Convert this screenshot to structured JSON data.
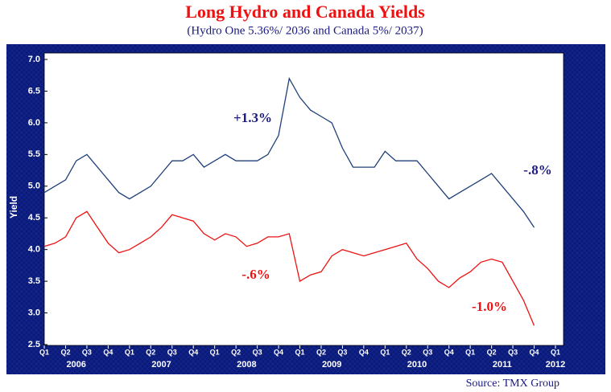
{
  "chart_data": {
    "type": "line",
    "title": "Long Hydro and Canada Yields",
    "subtitle": "(Hydro One 5.36%/ 2036 and Canada 5%/ 2037)",
    "y_label": "Yield",
    "source": "Source: TMX Group",
    "categories": [
      "Q1",
      null,
      "Q2",
      null,
      "Q3",
      null,
      "Q4",
      null,
      "Q1",
      null,
      "Q2",
      null,
      "Q3",
      null,
      "Q4",
      null,
      "Q1",
      null,
      "Q2",
      null,
      "Q3",
      null,
      "Q4",
      null,
      "Q1",
      null,
      "Q2",
      null,
      "Q3",
      null,
      "Q4",
      null,
      "Q1",
      null,
      "Q2",
      null,
      "Q3",
      null,
      "Q4",
      null,
      "Q1",
      null,
      "Q2",
      null,
      "Q3",
      null,
      "Q4",
      null,
      "Q1"
    ],
    "years": [
      "2006",
      "2007",
      "2008",
      "2009",
      "2010",
      "2011",
      "2012"
    ],
    "series": [
      {
        "name": "Hydro One 5.36%/ 2036",
        "color": "#1f3f7a",
        "values": [
          4.9,
          5.0,
          5.1,
          5.4,
          5.5,
          5.3,
          5.1,
          4.9,
          4.8,
          4.9,
          5.0,
          5.2,
          5.4,
          5.4,
          5.5,
          5.3,
          5.4,
          5.5,
          5.4,
          5.4,
          5.4,
          5.5,
          5.8,
          6.7,
          6.4,
          6.2,
          6.1,
          6.0,
          5.6,
          5.3,
          5.3,
          5.3,
          5.55,
          5.4,
          5.4,
          5.4,
          5.2,
          5.0,
          4.8,
          4.9,
          5.0,
          5.1,
          5.2,
          5.0,
          4.8,
          4.6,
          4.35,
          null,
          null
        ]
      },
      {
        "name": "Canada 5%/ 2037",
        "color": "#ee1111",
        "values": [
          4.05,
          4.1,
          4.2,
          4.5,
          4.6,
          4.35,
          4.1,
          3.95,
          4.0,
          4.1,
          4.2,
          4.35,
          4.55,
          4.5,
          4.45,
          4.25,
          4.15,
          4.25,
          4.2,
          4.05,
          4.1,
          4.2,
          4.2,
          4.25,
          3.5,
          3.6,
          3.65,
          3.9,
          4.0,
          3.95,
          3.9,
          3.95,
          4.0,
          4.05,
          4.1,
          3.85,
          3.7,
          3.5,
          3.4,
          3.55,
          3.65,
          3.8,
          3.85,
          3.8,
          3.5,
          3.2,
          2.8,
          null,
          null
        ]
      }
    ],
    "annotations": [
      {
        "text": "+1.3%",
        "color": "#1a1a80"
      },
      {
        "text": "-.8%",
        "color": "#1a1a80"
      },
      {
        "text": "-.6%",
        "color": "#ee1111"
      },
      {
        "text": "-1.0%",
        "color": "#ee1111"
      }
    ],
    "ylim": [
      2.5,
      7.0
    ],
    "yticks": [
      {
        "value": 2.5,
        "label": "2.5"
      },
      {
        "value": 3,
        "label": "3.0"
      },
      {
        "value": 3.5,
        "label": "3.5"
      },
      {
        "value": 4,
        "label": "4.0"
      },
      {
        "value": 4.5,
        "label": "4.5"
      },
      {
        "value": 5,
        "label": "5.0"
      },
      {
        "value": 5.5,
        "label": "5.5"
      },
      {
        "value": 6,
        "label": "6.0"
      },
      {
        "value": 6.5,
        "label": "6.5"
      },
      {
        "value": 7,
        "label": "7.0"
      }
    ],
    "grid": false
  }
}
